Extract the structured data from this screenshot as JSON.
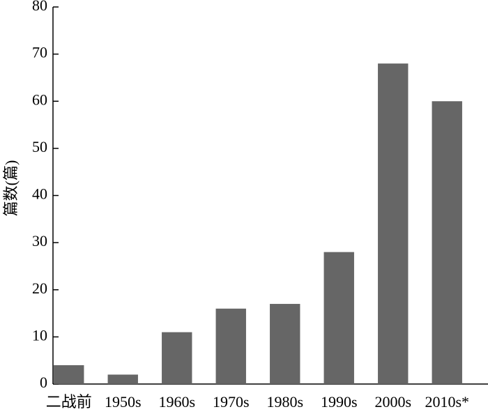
{
  "chart_data": {
    "type": "bar",
    "y_label": "篇数(篇)",
    "categories": [
      "二战前",
      "1950s",
      "1960s",
      "1970s",
      "1980s",
      "1990s",
      "2000s",
      "2010s*"
    ],
    "values": [
      4,
      2,
      11,
      16,
      17,
      28,
      68,
      60
    ],
    "color": "#666666",
    "ylim": [
      0,
      80
    ],
    "yticks": [
      0,
      10,
      20,
      30,
      40,
      50,
      60,
      70,
      80
    ]
  }
}
